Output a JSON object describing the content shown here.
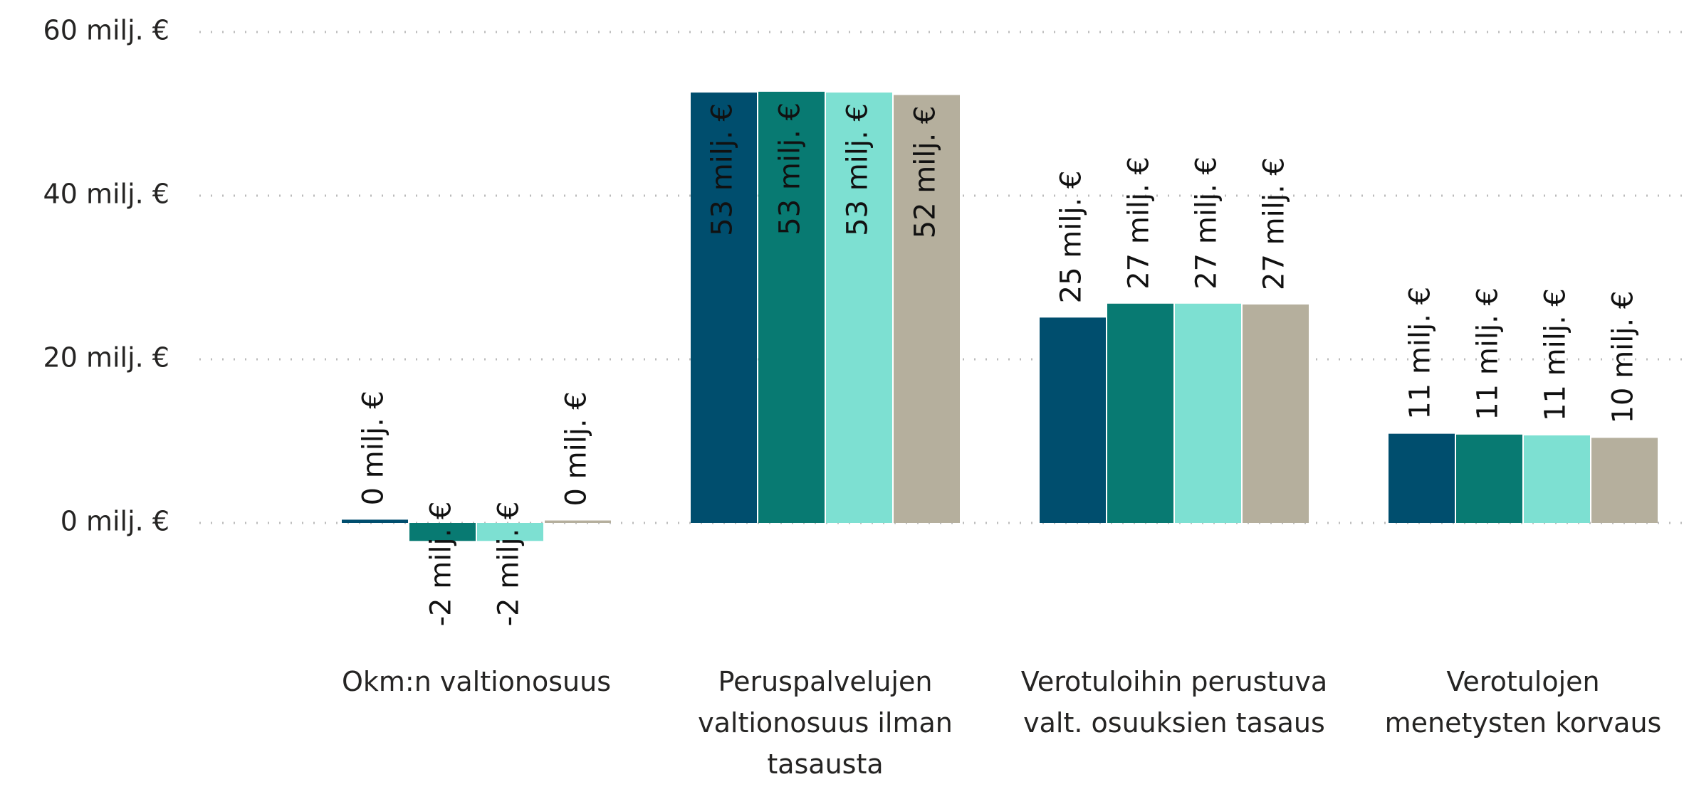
{
  "chart_data": {
    "type": "bar",
    "categories": [
      "Okm:n valtionosuus",
      "Peruspalvelujen valtionosuus ilman tasausta",
      "Verotuloihin perustuva valt. osuuksien tasaus",
      "Verotulojen menetysten korvaus"
    ],
    "series": [
      {
        "color": "#004e6e",
        "values": [
          0.4,
          52.6,
          25.1,
          10.9
        ],
        "value_labels": [
          "0 milj. €",
          "53 milj. €",
          "25 milj. €",
          "11 milj. €"
        ]
      },
      {
        "color": "#087a72",
        "values": [
          -2.2,
          52.7,
          26.8,
          10.8
        ],
        "value_labels": [
          "-2 milj. €",
          "53 milj. €",
          "27 milj. €",
          "11 milj. €"
        ]
      },
      {
        "color": "#7de0d2",
        "values": [
          -2.2,
          52.6,
          26.8,
          10.7
        ],
        "value_labels": [
          "-2 milj. €",
          "53 milj. €",
          "27 milj. €",
          "11 milj. €"
        ]
      },
      {
        "color": "#b5af9d",
        "values": [
          0.3,
          52.3,
          26.7,
          10.4
        ],
        "value_labels": [
          "0 milj. €",
          "52 milj. €",
          "27 milj. €",
          "10 milj. €"
        ]
      }
    ],
    "ylim": [
      -8,
      60
    ],
    "yticks": [
      {
        "value": 0,
        "label": "0 milj. €"
      },
      {
        "value": 20,
        "label": "20 milj. €"
      },
      {
        "value": 40,
        "label": "40 milj. €"
      },
      {
        "value": 60,
        "label": "60 milj. €"
      }
    ],
    "grid": true
  }
}
